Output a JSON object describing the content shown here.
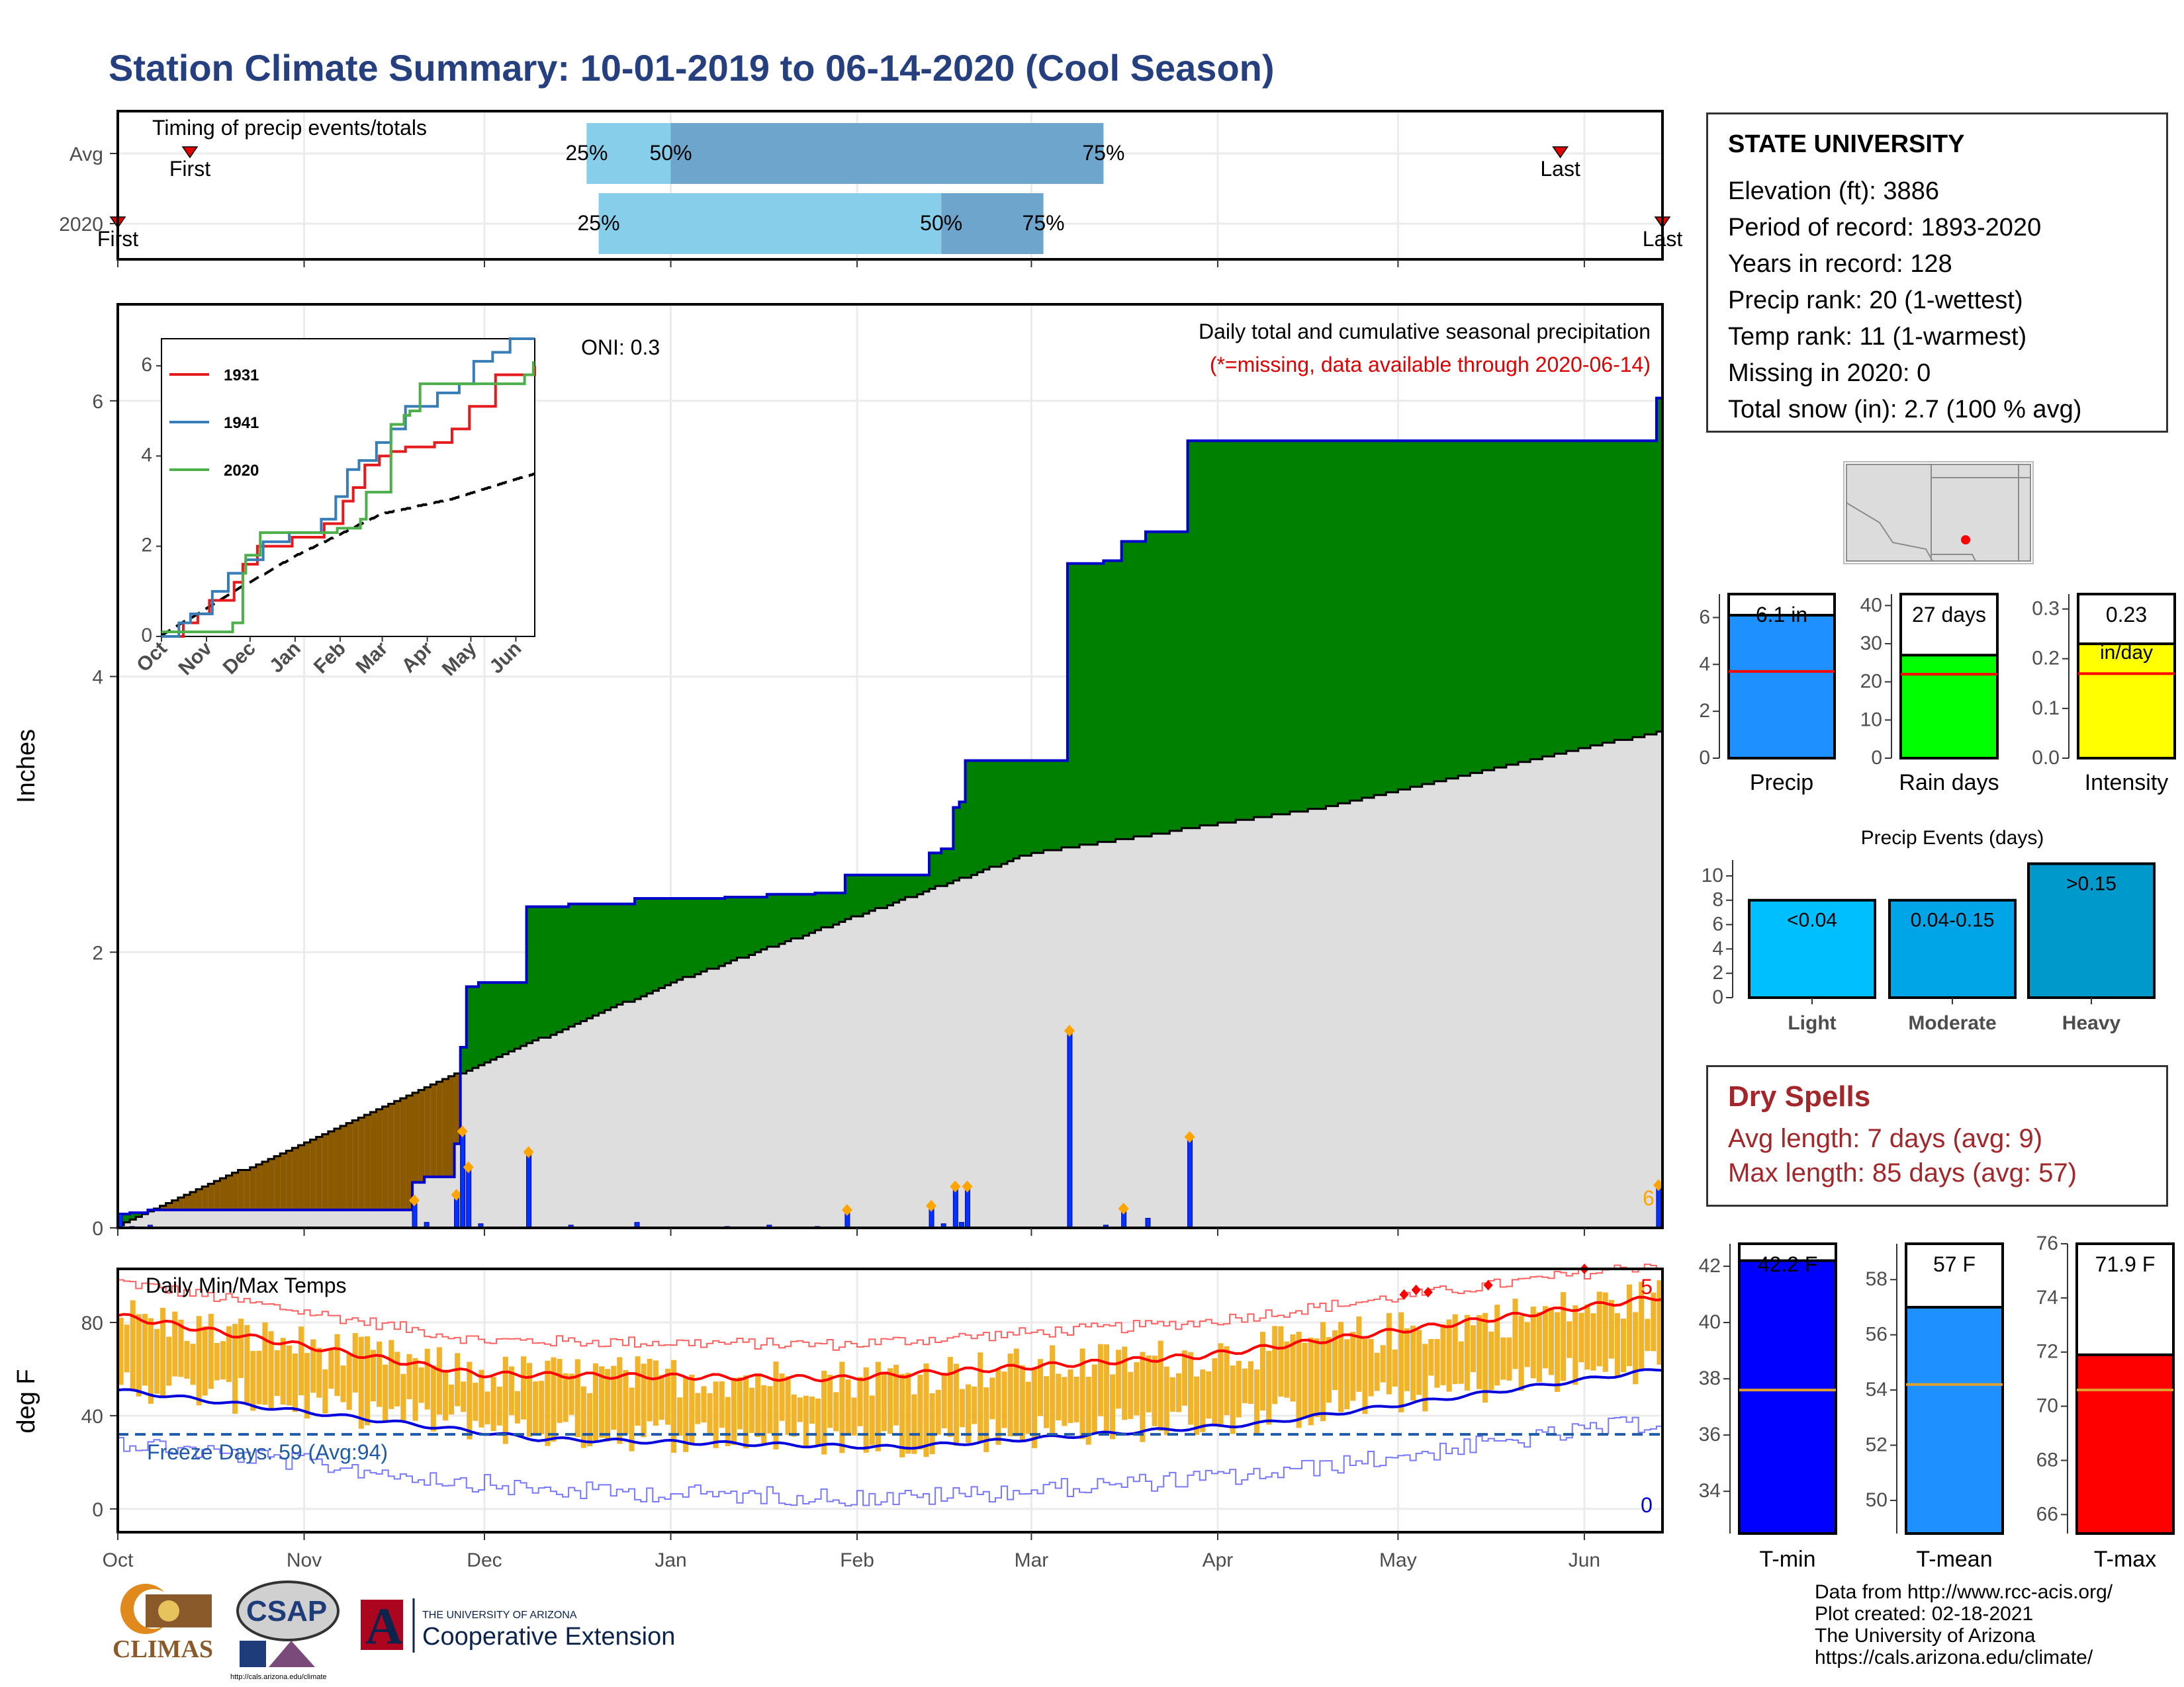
{
  "title": "Station Climate Summary: 10-01-2019 to 06-14-2020 (Cool Season)",
  "months": [
    "Oct",
    "Nov",
    "Dec",
    "Jan",
    "Feb",
    "Mar",
    "Apr",
    "May",
    "Jun"
  ],
  "timing_panel": {
    "title": "Timing of precip events/totals",
    "rows": [
      {
        "label": "Avg",
        "first_label": "First",
        "last_label": "Last",
        "first_date": "2019-10-13",
        "last_date": "2020-05-28",
        "p25": "2019-12-18",
        "p50": "2020-01-01",
        "p75": "2020-03-13",
        "p25_label": "25%",
        "p50_label": "50%",
        "p75_label": "75%"
      },
      {
        "label": "2020",
        "first_label": "First",
        "last_label": "Last",
        "first_date": "2019-10-01",
        "last_date": "2020-06-14",
        "p25": "2019-12-20",
        "p50": "2020-02-15",
        "p75": "2020-03-03",
        "p25_label": "25%",
        "p50_label": "50%",
        "p75_label": "75%"
      }
    ],
    "colors": {
      "light": "#87ceeb",
      "dark": "#6da5cc"
    }
  },
  "precip_panel": {
    "ylabel": "Inches",
    "oni": "ONI: 0.3",
    "heading": "Daily total and cumulative seasonal precipitation",
    "note": "(*=missing, data available through 2020-06-14)",
    "end_annotation": "6",
    "ylim": [
      0,
      6.7
    ],
    "yticks": [
      0,
      2,
      4,
      6
    ],
    "colors": {
      "above": "#008000",
      "below": "#8b5a00",
      "normal": "#dedede",
      "line": "#0000cc",
      "bar": "#0033ff"
    }
  },
  "inset": {
    "legend": [
      "1931",
      "1941",
      "2020"
    ],
    "colors": {
      "1931": "#e41a1c",
      "1941": "#377eb8",
      "2020": "#4daf4a"
    },
    "ylim": [
      0,
      6.6
    ],
    "yticks": [
      0,
      2,
      4,
      6
    ],
    "months": [
      "Oct",
      "Nov",
      "Dec",
      "Jan",
      "Feb",
      "Mar",
      "Apr",
      "May",
      "Jun"
    ]
  },
  "temp_panel": {
    "ylabel": "deg F",
    "title": "Daily Min/Max Temps",
    "freeze": "Freeze Days: 59 (Avg:94)",
    "record_high_count": "5",
    "record_low_count": "0",
    "ylim": [
      -10,
      103
    ],
    "yticks": [
      0,
      40,
      80
    ],
    "colors": {
      "bar": "#f0b32a",
      "max_norm": "#ff0000",
      "min_norm": "#0000dd",
      "freeze": "#1f5aa6"
    }
  },
  "station": {
    "name": "STATE UNIVERSITY",
    "lines": [
      "Elevation (ft): 3886",
      "Period of record: 1893-2020",
      "Years in record: 128",
      "Precip rank: 20 (1-wettest)",
      "Temp rank: 11 (1-warmest)",
      "Missing in 2020: 0",
      "Total snow (in): 2.7 (100 % avg)"
    ]
  },
  "summary_bars": [
    {
      "name": "Precip",
      "value": 6.1,
      "label": "6.1 in",
      "avg": 3.7,
      "ylim": [
        0,
        7
      ],
      "yticks": [
        0,
        2,
        4,
        6
      ],
      "color": "#1e90ff"
    },
    {
      "name": "Rain days",
      "value": 27,
      "label": "27 days",
      "avg": 22,
      "ylim": [
        0,
        43
      ],
      "yticks": [
        0,
        10,
        20,
        30,
        40
      ],
      "color": "#00ff00"
    },
    {
      "name": "Intensity",
      "value": 0.23,
      "label": "0.23",
      "sublabel": "in/day",
      "avg": 0.17,
      "ylim": [
        0,
        0.33
      ],
      "yticks": [
        0.0,
        0.1,
        0.2,
        0.3
      ],
      "color": "#ffff00"
    }
  ],
  "precip_events": {
    "title": "Precip Events (days)",
    "yticks": [
      0,
      2,
      4,
      6,
      8,
      10
    ],
    "ylim": [
      0,
      11.3
    ],
    "bars": [
      {
        "category": "Light",
        "label": "<0.04",
        "value": 8,
        "color": "#00bfff"
      },
      {
        "category": "Moderate",
        "label": "0.04-0.15",
        "value": 8,
        "color": "#00a5e8"
      },
      {
        "category": "Heavy",
        "label": ">0.15",
        "value": 11,
        "color": "#0099cc"
      }
    ]
  },
  "dry_spells": {
    "title": "Dry Spells",
    "avg": "Avg length: 7 days (avg: 9)",
    "max": "Max length: 85 days (avg: 57)"
  },
  "temp_bars": [
    {
      "name": "T-min",
      "value": 42.2,
      "label": "42.2 F",
      "avg": 37.6,
      "ylim": [
        32.5,
        42.8
      ],
      "yticks": [
        34,
        36,
        38,
        40,
        42
      ],
      "color": "#0000ff"
    },
    {
      "name": "T-mean",
      "value": 57.0,
      "label": "57 F",
      "avg": 54.2,
      "ylim": [
        48.8,
        59.3
      ],
      "yticks": [
        50,
        52,
        54,
        56,
        58
      ],
      "color": "#1e90ff"
    },
    {
      "name": "T-max",
      "value": 71.9,
      "label": "71.9 F",
      "avg": 70.6,
      "ylim": [
        65.3,
        76.0
      ],
      "yticks": [
        66,
        68,
        70,
        72,
        74,
        76
      ],
      "color": "#ff0000"
    }
  ],
  "credits": [
    "Data from http://www.rcc-acis.org/",
    "Plot created: 02-18-2021",
    "The University of Arizona",
    "https://cals.arizona.edu/climate/"
  ],
  "logos": {
    "climas": "CLIMAS",
    "csap": "CSAP",
    "csap_url": "http://cals.arizona.edu/climate",
    "ua_small": "THE UNIVERSITY OF ARIZONA",
    "ua_big": "Cooperative Extension",
    "ua_mark": "A"
  }
}
